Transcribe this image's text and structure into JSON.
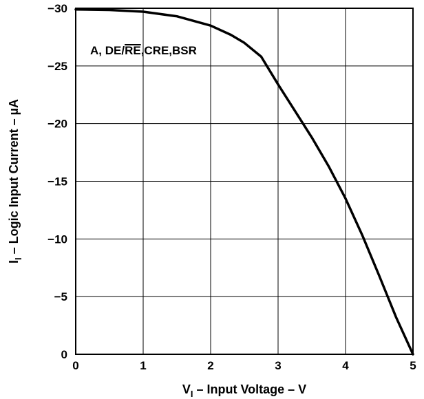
{
  "chart_data": {
    "type": "line",
    "xlabel": {
      "main": "V",
      "sub": "I",
      "rest": " – Input Voltage – V"
    },
    "ylabel": {
      "main": "I",
      "sub": "I",
      "rest": "  – Logic Input Current – µA"
    },
    "xlim": [
      0,
      5
    ],
    "ylim": [
      0,
      -30
    ],
    "x_ticks": [
      "0",
      "1",
      "2",
      "3",
      "4",
      "5"
    ],
    "y_ticks": [
      "0",
      "−5",
      "−10",
      "−15",
      "−20",
      "−25",
      "−30"
    ],
    "grid": true,
    "annotation": {
      "prefix": "A, DE/",
      "overline": "RE",
      "suffix": ",CRE,BSR"
    },
    "series": [
      {
        "x": [
          0,
          0.5,
          1.0,
          1.5,
          2.0,
          2.3,
          2.5,
          2.75,
          3.0,
          3.25,
          3.5,
          3.75,
          4.0,
          4.25,
          4.5,
          4.75,
          5.0
        ],
        "y": [
          -29.9,
          -29.85,
          -29.7,
          -29.3,
          -28.5,
          -27.7,
          -27.0,
          -25.8,
          -23.4,
          -21.1,
          -18.8,
          -16.3,
          -13.5,
          -10.3,
          -6.8,
          -3.2,
          0
        ]
      }
    ]
  }
}
